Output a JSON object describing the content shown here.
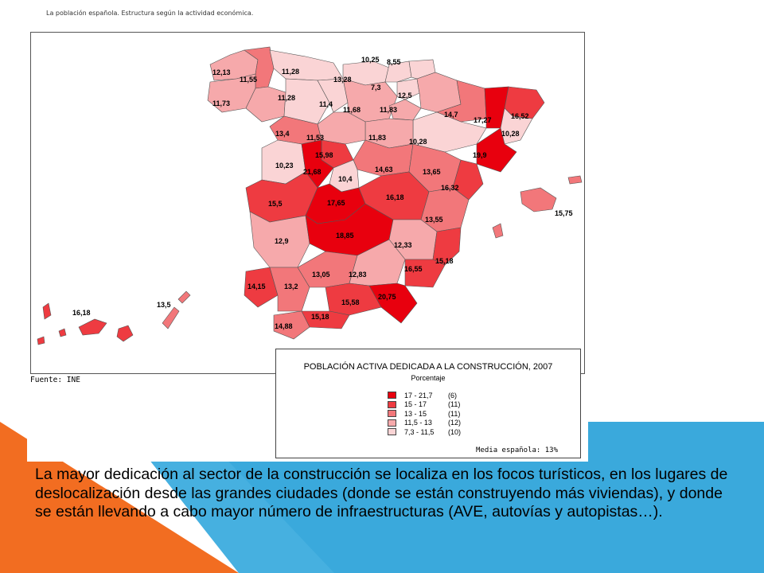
{
  "slide": {
    "top_caption": "La población española. Estructura según la actividad económica.",
    "source": "Fuente: INE",
    "body_text": "La mayor dedicación al sector de la construcción se localiza en los focos turísticos, en los lugares de deslocalización desde las grandes ciudades (donde se están construyendo más viviendas), y donde se están llevando a cabo mayor número de infraestructuras (AVE, autovías y autopistas…)."
  },
  "legend": {
    "title": "POBLACIÓN ACTIVA DEDICADA A LA CONSTRUCCIÓN, 2007",
    "subtitle": "Porcentaje",
    "mean": "Media española: 13%",
    "classes": [
      {
        "range": "17   - 21,7",
        "count": "(6)",
        "color": "#e8000e"
      },
      {
        "range": "15   - 17",
        "count": "(11)",
        "color": "#ee3b41"
      },
      {
        "range": "13   - 15",
        "count": "(11)",
        "color": "#f2777a"
      },
      {
        "range": "11,5 - 13",
        "count": "(12)",
        "color": "#f6a9ab"
      },
      {
        "range": "7,3 - 11,5",
        "count": "(10)",
        "color": "#fad4d5"
      }
    ]
  },
  "colors": {
    "orange": "#f26d21",
    "blue": "#3aa9dc",
    "dark_blue": "#2a8fc4"
  },
  "map_labels": [
    "12,13",
    "11,55",
    "11,28",
    "10,25",
    "8,55",
    "13,28",
    "11,73",
    "11,28",
    "7,3",
    "12,5",
    "11,4",
    "11,68",
    "11,83",
    "14,7",
    "17,27",
    "16,52",
    "13,4",
    "11,53",
    "11,83",
    "10,28",
    "10,28",
    "19,9",
    "10,23",
    "15,98",
    "21,68",
    "10,4",
    "14,63",
    "13,65",
    "16,32",
    "15,5",
    "17,65",
    "16,18",
    "13,55",
    "15,75",
    "12,9",
    "18,85",
    "12,33",
    "15,18",
    "16,55",
    "14,15",
    "13,2",
    "13,05",
    "12,83",
    "20,75",
    "15,58",
    "15,18",
    "14,88",
    "16,18",
    "13,5"
  ]
}
